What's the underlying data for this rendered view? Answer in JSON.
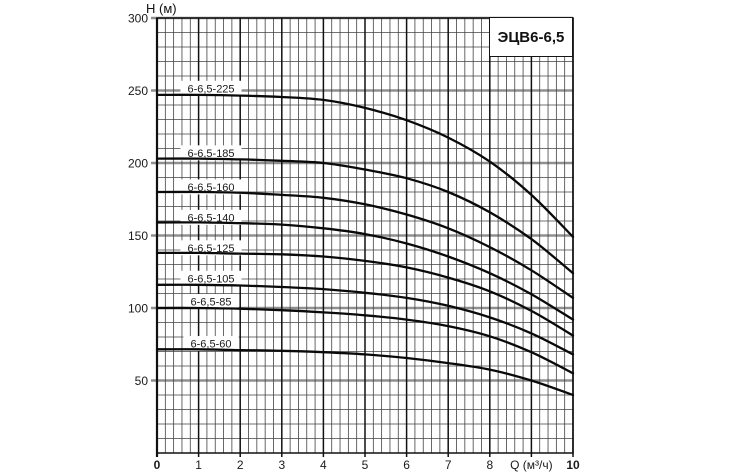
{
  "figure": {
    "background": "#ffffff"
  },
  "chart_data": {
    "type": "line",
    "title": "ЭЦВ6-6,5",
    "xlabel": "Q (м³/ч)",
    "ylabel": "H (м)",
    "xlim": [
      0,
      10
    ],
    "ylim": [
      0,
      300
    ],
    "grid": true,
    "x_minor_step": 0.2,
    "y_minor_step": 10,
    "x_major_step": 1,
    "y_major_step": 50,
    "x_tick_values": [
      0,
      1,
      2,
      3,
      4,
      5,
      6,
      7,
      8,
      9,
      10
    ],
    "x_tick_labels": [
      "0",
      "1",
      "2",
      "3",
      "4",
      "5",
      "6",
      "7",
      "8",
      "Q (м³/ч)",
      "10"
    ],
    "x_tick_bold": [
      1,
      0,
      0,
      0,
      0,
      0,
      0,
      0,
      0,
      0,
      1
    ],
    "y_tick_values": [
      50,
      100,
      150,
      200,
      250,
      300
    ],
    "y_tick_labels": [
      "50",
      "100",
      "150",
      "200",
      "250",
      "300"
    ],
    "legend_position": "inline-curve-labels",
    "x": [
      0,
      1,
      2,
      3,
      4,
      5,
      6,
      7,
      8,
      9,
      10
    ],
    "series": [
      {
        "name": "6-6,5-225",
        "values": [
          247,
          247,
          246.5,
          245.5,
          243.5,
          238,
          229.5,
          217.5,
          201,
          178,
          149
        ],
        "label_h": 251.5
      },
      {
        "name": "6-6,5-185",
        "values": [
          203,
          203,
          202.5,
          201.5,
          200,
          195.5,
          189.5,
          180,
          166,
          147.5,
          124
        ],
        "label_h": 207
      },
      {
        "name": "6-6,5-160",
        "values": [
          180,
          180,
          179.5,
          178,
          176,
          171.5,
          164.5,
          155,
          142,
          126,
          107
        ],
        "label_h": 183.5
      },
      {
        "name": "6-6,5-140",
        "values": [
          159,
          159,
          158.5,
          157.5,
          155,
          151,
          144.5,
          135.5,
          124,
          109.5,
          92
        ],
        "label_h": 162.5
      },
      {
        "name": "6-6,5-125",
        "values": [
          138,
          138,
          137.5,
          137,
          135.5,
          132.5,
          128,
          121,
          111.5,
          98,
          81
        ],
        "label_h": 141.5
      },
      {
        "name": "6-6,5-105",
        "values": [
          116,
          116,
          115.5,
          114.5,
          113,
          110.5,
          107,
          101.5,
          93.5,
          82.5,
          68
        ],
        "label_h": 120.5
      },
      {
        "name": "6-6,5-85",
        "values": [
          100,
          100,
          99.5,
          98.5,
          97,
          95,
          92,
          87.5,
          80.5,
          69.5,
          55
        ],
        "label_h": 104.5
      },
      {
        "name": "6-6,5-60",
        "values": [
          71.5,
          71.5,
          71,
          70.5,
          69.5,
          68,
          65.5,
          62,
          57.5,
          50,
          40
        ],
        "label_h": 75.5
      }
    ]
  },
  "colors": {
    "curve": "#0a0a0a",
    "grid_minor": "#424242",
    "grid_major_vertical": "#101010",
    "grid_major_horizontal": "#8f8f8f",
    "plot_border": "#101010",
    "text": "#1a1a1a",
    "label_background": "#ffffff"
  }
}
